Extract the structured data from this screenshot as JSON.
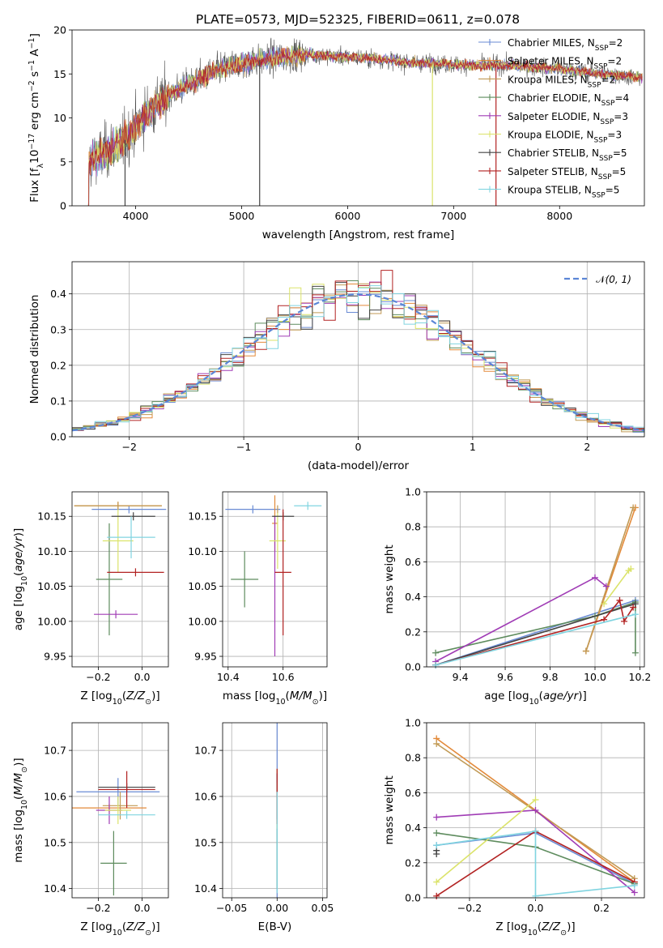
{
  "title": "PLATE=0573, MJD=52325, FIBERID=0611, z=0.078",
  "colors": [
    "#6a8bd4",
    "#e38a3a",
    "#c19a55",
    "#5e8c5e",
    "#a03cb5",
    "#dbe36a",
    "#444444",
    "#b22222",
    "#80d4e0"
  ],
  "legend": [
    {
      "label": "Chabrier MILES, N",
      "sub": "SSP",
      "suffix": "=2"
    },
    {
      "label": "Salpeter MILES, N",
      "sub": "SSP",
      "suffix": "=2"
    },
    {
      "label": "Kroupa MILES, N",
      "sub": "SSP",
      "suffix": "=2"
    },
    {
      "label": "Chabrier ELODIE, N",
      "sub": "SSP",
      "suffix": "=4"
    },
    {
      "label": "Salpeter ELODIE, N",
      "sub": "SSP",
      "suffix": "=3"
    },
    {
      "label": "Kroupa ELODIE, N",
      "sub": "SSP",
      "suffix": "=3"
    },
    {
      "label": "Chabrier STELIB, N",
      "sub": "SSP",
      "suffix": "=5"
    },
    {
      "label": "Salpeter STELIB, N",
      "sub": "SSP",
      "suffix": "=5"
    },
    {
      "label": "Kroupa STELIB, N",
      "sub": "SSP",
      "suffix": "=5"
    }
  ],
  "chart_data": [
    {
      "id": "spectrum",
      "type": "line",
      "xlabel": "wavelength [Angstrom, rest frame]",
      "ylabel_parts": [
        "Flux [f",
        "λ",
        "10",
        "−17",
        " erg cm",
        "−2",
        " s",
        "−1",
        " A",
        "−1",
        "]"
      ],
      "xlim": [
        3400,
        8800
      ],
      "ylim": [
        0,
        20
      ],
      "xticks": [
        4000,
        5000,
        6000,
        7000,
        8000
      ],
      "yticks": [
        0,
        5,
        10,
        15,
        20
      ],
      "continuum": [
        [
          3550,
          5.0
        ],
        [
          3700,
          6.0
        ],
        [
          3900,
          7.5
        ],
        [
          4000,
          9.0
        ],
        [
          4100,
          10.5
        ],
        [
          4300,
          12.5
        ],
        [
          4500,
          13.8
        ],
        [
          4800,
          15.6
        ],
        [
          5000,
          16.2
        ],
        [
          5300,
          16.8
        ],
        [
          5600,
          17.2
        ],
        [
          5900,
          17.0
        ],
        [
          6200,
          16.8
        ],
        [
          6500,
          16.4
        ],
        [
          6800,
          16.2
        ],
        [
          7100,
          16.0
        ],
        [
          7500,
          16.0
        ],
        [
          7800,
          15.8
        ],
        [
          8100,
          15.4
        ],
        [
          8500,
          14.9
        ],
        [
          8780,
          14.6
        ]
      ],
      "dropouts": [
        [
          3900,
          0
        ],
        [
          5170,
          0
        ],
        [
          6800,
          0
        ],
        [
          7400,
          0
        ]
      ]
    },
    {
      "id": "residuals",
      "type": "histogram",
      "xlabel": "(data-model)/error",
      "ylabel": "Normed distribution",
      "xlim": [
        -2.5,
        2.5
      ],
      "ylim": [
        0,
        0.49
      ],
      "xticks": [
        -2,
        -1,
        0,
        1,
        2
      ],
      "yticks": [
        0.0,
        0.1,
        0.2,
        0.3,
        0.4
      ],
      "bin_width": 0.1,
      "reference": {
        "name": "N(0,1)",
        "mean": 0,
        "sigma": 1
      }
    },
    {
      "id": "age_vs_Z",
      "type": "scatter",
      "xlabel": "Z [log10(Z/Z☉)]",
      "ylabel": "age  [log10(age/yr)]",
      "xlim": [
        -0.32,
        0.12
      ],
      "ylim": [
        9.935,
        10.185
      ],
      "xticks": [
        -0.2,
        0.0
      ],
      "yticks": [
        9.95,
        10.0,
        10.05,
        10.1,
        10.15
      ],
      "points": [
        {
          "x": -0.06,
          "xerr": 0.17,
          "y": 10.16,
          "yerr": 0.0
        },
        {
          "x": -0.11,
          "xerr": 0.2,
          "y": 10.165,
          "yerr": 0.0
        },
        {
          "x": -0.11,
          "xerr": 0.2,
          "y": 10.165,
          "yerr": 0.0
        },
        {
          "x": -0.15,
          "xerr": 0.06,
          "y": 10.06,
          "yerr": 0.08
        },
        {
          "x": -0.12,
          "xerr": 0.1,
          "y": 10.01,
          "yerr": 0.0
        },
        {
          "x": -0.11,
          "xerr": 0.07,
          "y": 10.115,
          "yerr": 0.045
        },
        {
          "x": -0.04,
          "xerr": 0.1,
          "y": 10.15,
          "yerr": 0.0
        },
        {
          "x": -0.03,
          "xerr": 0.13,
          "y": 10.07,
          "yerr": 0.0
        },
        {
          "x": -0.05,
          "xerr": 0.11,
          "y": 10.12,
          "yerr": 0.03
        }
      ]
    },
    {
      "id": "age_vs_mass",
      "type": "scatter",
      "xlabel": "mass [log10(M/M☉)]",
      "ylabel": "",
      "xlim": [
        10.38,
        10.76
      ],
      "ylim": [
        9.935,
        10.185
      ],
      "xticks": [
        10.4,
        10.6
      ],
      "yticks": [
        9.95,
        10.0,
        10.05,
        10.1,
        10.15
      ],
      "points": [
        {
          "x": 10.49,
          "xerr": 0.1,
          "y": 10.16,
          "yerr": 0.0
        },
        {
          "x": 10.57,
          "xerr": 0.01,
          "y": 10.14,
          "yerr": 0.04
        },
        {
          "x": 10.58,
          "xerr": 0.0,
          "y": 10.16,
          "yerr": 0.0
        },
        {
          "x": 10.46,
          "xerr": 0.05,
          "y": 10.06,
          "yerr": 0.04
        },
        {
          "x": 10.57,
          "xerr": 0.0,
          "y": 10.05,
          "yerr": 0.1
        },
        {
          "x": 10.58,
          "xerr": 0.03,
          "y": 10.115,
          "yerr": 0.04
        },
        {
          "x": 10.6,
          "xerr": 0.04,
          "y": 10.15,
          "yerr": 0.0
        },
        {
          "x": 10.6,
          "xerr": 0.03,
          "y": 10.07,
          "yerr": 0.09
        },
        {
          "x": 10.69,
          "xerr": 0.05,
          "y": 10.165,
          "yerr": 0.0
        }
      ]
    },
    {
      "id": "weight_vs_age",
      "type": "line",
      "xlabel": "age  [log10(age/yr)]",
      "ylabel": "mass weight",
      "xlim": [
        9.25,
        10.22
      ],
      "ylim": [
        0,
        1.0
      ],
      "xticks": [
        9.4,
        9.6,
        9.8,
        10.0,
        10.2
      ],
      "yticks": [
        0.0,
        0.2,
        0.4,
        0.6,
        0.8,
        1.0
      ],
      "series": [
        {
          "x": [
            9.29,
            10.18
          ],
          "y": [
            0.01,
            0.38
          ]
        },
        {
          "x": [
            9.96,
            10.18
          ],
          "y": [
            0.09,
            0.91
          ]
        },
        {
          "x": [
            9.96,
            10.17
          ],
          "y": [
            0.09,
            0.91
          ]
        },
        {
          "x": [
            9.29,
            10.0,
            10.18,
            10.18
          ],
          "y": [
            0.08,
            0.29,
            0.37,
            0.08
          ]
        },
        {
          "x": [
            9.29,
            10.0,
            10.05
          ],
          "y": [
            0.03,
            0.51,
            0.46
          ]
        },
        {
          "x": [
            10.04,
            10.15,
            10.16
          ],
          "y": [
            0.36,
            0.55,
            0.56
          ]
        },
        {
          "x": [
            9.29,
            10.18
          ],
          "y": [
            0.01,
            0.36
          ]
        },
        {
          "x": [
            9.29,
            10.04,
            10.11,
            10.13,
            10.17
          ],
          "y": [
            0.01,
            0.27,
            0.38,
            0.26,
            0.34
          ]
        },
        {
          "x": [
            9.29,
            10.18
          ],
          "y": [
            0.01,
            0.3
          ]
        }
      ]
    },
    {
      "id": "mass_vs_Z",
      "type": "scatter",
      "xlabel": "Z [log10(Z/Z☉)]",
      "ylabel": "mass [log10(M/M☉)]",
      "xlim": [
        -0.32,
        0.12
      ],
      "ylim": [
        10.38,
        10.76
      ],
      "xticks": [
        -0.2,
        0.0
      ],
      "yticks": [
        10.4,
        10.5,
        10.6,
        10.7
      ],
      "points": [
        {
          "x": -0.11,
          "xerr": 0.19,
          "y": 10.61,
          "yerr": 0.03
        },
        {
          "x": -0.15,
          "xerr": 0.17,
          "y": 10.575,
          "yerr": 0.0
        },
        {
          "x": -0.1,
          "xerr": 0.08,
          "y": 10.58,
          "yerr": 0.03
        },
        {
          "x": -0.13,
          "xerr": 0.06,
          "y": 10.455,
          "yerr": 0.07
        },
        {
          "x": -0.15,
          "xerr": 0.06,
          "y": 10.57,
          "yerr": 0.03
        },
        {
          "x": -0.11,
          "xerr": 0.06,
          "y": 10.57,
          "yerr": 0.03
        },
        {
          "x": -0.07,
          "xerr": 0.13,
          "y": 10.62,
          "yerr": 0.0
        },
        {
          "x": -0.07,
          "xerr": 0.13,
          "y": 10.615,
          "yerr": 0.04
        },
        {
          "x": -0.07,
          "xerr": 0.13,
          "y": 10.56,
          "yerr": 0.0
        }
      ]
    },
    {
      "id": "mass_vs_EBV",
      "type": "scatter",
      "xlabel": "E(B-V)",
      "ylabel": "",
      "xlim": [
        -0.06,
        0.055
      ],
      "ylim": [
        10.38,
        10.76
      ],
      "xticks": [
        -0.05,
        0.0,
        0.05
      ],
      "yticks": [
        10.4,
        10.5,
        10.6,
        10.7
      ],
      "points": [
        {
          "x": 0.0,
          "xerr": 0.0,
          "y": 10.6,
          "yerr": 0.22
        },
        {
          "x": 0.0,
          "xerr": 0.0,
          "y": 10.6,
          "yerr": 0.06
        },
        {
          "x": 0.0,
          "xerr": 0.0,
          "y": 10.6,
          "yerr": 0.06
        },
        {
          "x": 0.0,
          "xerr": 0.0,
          "y": 10.5,
          "yerr": 0.1
        },
        {
          "x": 0.0,
          "xerr": 0.0,
          "y": 10.6,
          "yerr": 0.05
        },
        {
          "x": 0.0,
          "xerr": 0.0,
          "y": 10.58,
          "yerr": 0.05
        },
        {
          "x": 0.0,
          "xerr": 0.0,
          "y": 10.6,
          "yerr": 0.05
        },
        {
          "x": 0.0,
          "xerr": 0.0,
          "y": 10.6,
          "yerr": 0.06
        },
        {
          "x": 0.0,
          "xerr": 0.0,
          "y": 10.5,
          "yerr": 0.11
        }
      ]
    },
    {
      "id": "weight_vs_Z",
      "type": "line",
      "xlabel": "Z [log10(Z/Z☉)]",
      "ylabel": "mass weight",
      "xlim": [
        -0.33,
        0.33
      ],
      "ylim": [
        0,
        1.0
      ],
      "xticks": [
        -0.2,
        0.0,
        0.2
      ],
      "yticks": [
        0.0,
        0.2,
        0.4,
        0.6,
        0.8,
        1.0
      ],
      "series": [
        {
          "x": [
            -0.3,
            0.0,
            0.3
          ],
          "y": [
            0.3,
            0.37,
            0.08
          ]
        },
        {
          "x": [
            -0.3,
            0.3
          ],
          "y": [
            0.91,
            0.09
          ]
        },
        {
          "x": [
            -0.3,
            0.3
          ],
          "y": [
            0.88,
            0.11
          ]
        },
        {
          "x": [
            -0.3,
            0.0,
            0.3
          ],
          "y": [
            0.37,
            0.29,
            0.08
          ]
        },
        {
          "x": [
            -0.3,
            0.0,
            0.3
          ],
          "y": [
            0.46,
            0.5,
            0.03
          ]
        },
        {
          "x": [
            -0.3,
            0.0
          ],
          "y": [
            0.09,
            0.56
          ]
        },
        {
          "x": [
            -0.3,
            -0.3
          ],
          "y": [
            0.25,
            0.27
          ]
        },
        {
          "x": [
            -0.3,
            0.0,
            0.3
          ],
          "y": [
            0.01,
            0.38,
            0.09
          ]
        },
        {
          "x": [
            -0.3,
            0.0,
            0.0,
            0.3
          ],
          "y": [
            0.3,
            0.38,
            0.01,
            0.07
          ]
        }
      ]
    }
  ]
}
